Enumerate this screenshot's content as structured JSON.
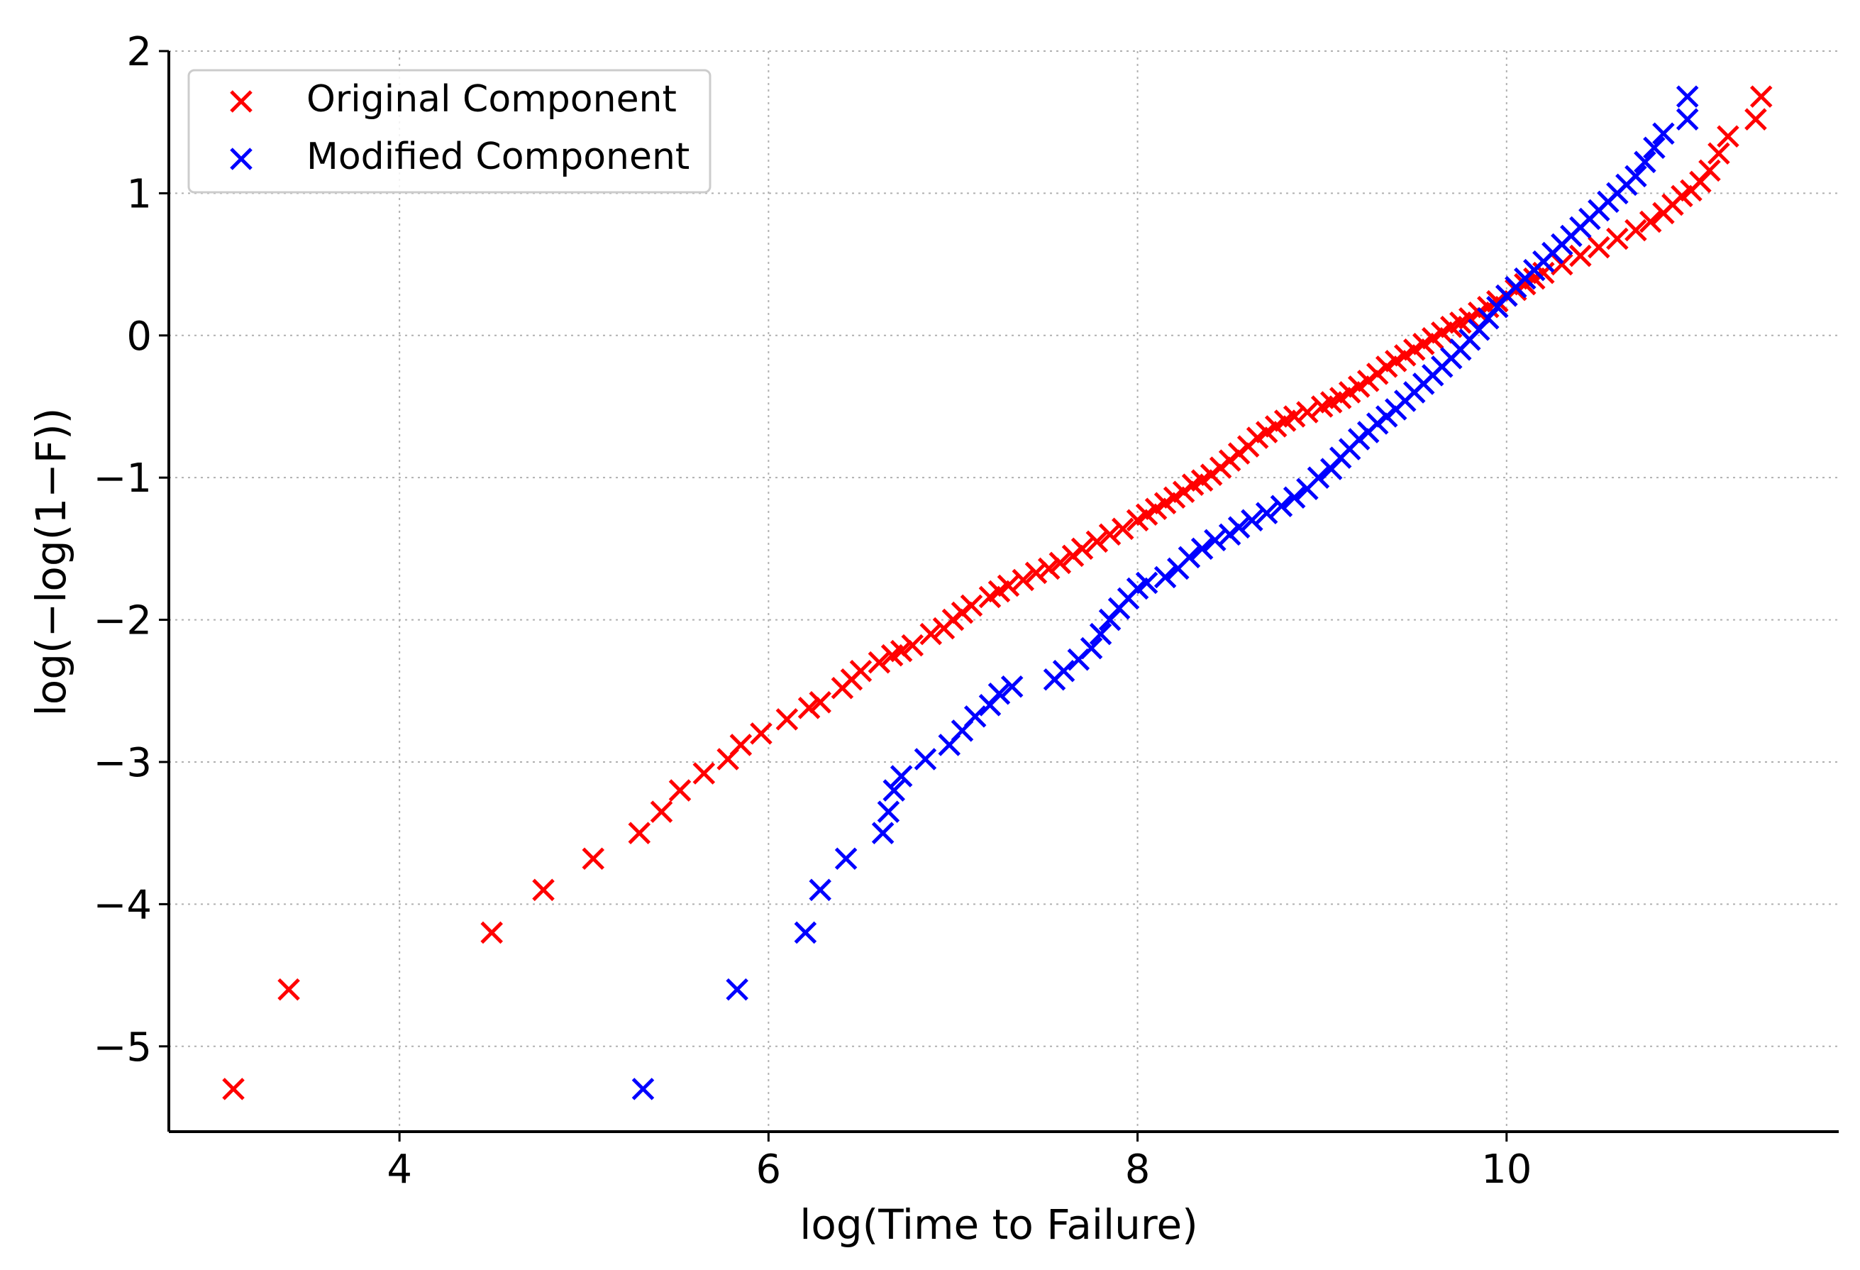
{
  "chart_data": {
    "type": "scatter",
    "xlabel": "log(Time to Failure)",
    "ylabel": "log(−log(1−F))",
    "xlim": [
      2.75,
      11.8
    ],
    "ylim": [
      -5.6,
      2.0
    ],
    "xticks": [
      4,
      6,
      8,
      10
    ],
    "xtick_labels": [
      "4",
      "6",
      "8",
      "10"
    ],
    "yticks": [
      2,
      1,
      0,
      -1,
      -2,
      -3,
      -4,
      -5
    ],
    "ytick_labels": [
      "2",
      "1",
      "0",
      "−1",
      "−2",
      "−3",
      "−4",
      "−5"
    ],
    "grid": true,
    "grid_style": "dotted",
    "marker": "x",
    "legend_placement": "top-left",
    "series": [
      {
        "name": "Original Component",
        "color": "#ff0000",
        "points": [
          [
            3.1,
            -5.3
          ],
          [
            3.4,
            -4.6
          ],
          [
            4.5,
            -4.2
          ],
          [
            4.78,
            -3.9
          ],
          [
            5.05,
            -3.68
          ],
          [
            5.3,
            -3.5
          ],
          [
            5.42,
            -3.35
          ],
          [
            5.52,
            -3.2
          ],
          [
            5.65,
            -3.08
          ],
          [
            5.78,
            -2.98
          ],
          [
            5.85,
            -2.88
          ],
          [
            5.96,
            -2.8
          ],
          [
            6.1,
            -2.7
          ],
          [
            6.22,
            -2.62
          ],
          [
            6.28,
            -2.58
          ],
          [
            6.4,
            -2.48
          ],
          [
            6.45,
            -2.42
          ],
          [
            6.5,
            -2.36
          ],
          [
            6.6,
            -2.3
          ],
          [
            6.67,
            -2.25
          ],
          [
            6.72,
            -2.22
          ],
          [
            6.78,
            -2.18
          ],
          [
            6.88,
            -2.1
          ],
          [
            6.95,
            -2.06
          ],
          [
            7.0,
            -2.0
          ],
          [
            7.05,
            -1.95
          ],
          [
            7.1,
            -1.9
          ],
          [
            7.2,
            -1.84
          ],
          [
            7.25,
            -1.8
          ],
          [
            7.3,
            -1.76
          ],
          [
            7.38,
            -1.72
          ],
          [
            7.45,
            -1.67
          ],
          [
            7.52,
            -1.64
          ],
          [
            7.58,
            -1.6
          ],
          [
            7.65,
            -1.55
          ],
          [
            7.7,
            -1.5
          ],
          [
            7.78,
            -1.45
          ],
          [
            7.85,
            -1.4
          ],
          [
            7.92,
            -1.36
          ],
          [
            8.0,
            -1.3
          ],
          [
            8.05,
            -1.26
          ],
          [
            8.1,
            -1.22
          ],
          [
            8.15,
            -1.18
          ],
          [
            8.2,
            -1.14
          ],
          [
            8.25,
            -1.1
          ],
          [
            8.3,
            -1.05
          ],
          [
            8.35,
            -1.02
          ],
          [
            8.4,
            -0.98
          ],
          [
            8.45,
            -0.93
          ],
          [
            8.5,
            -0.88
          ],
          [
            8.55,
            -0.83
          ],
          [
            8.6,
            -0.78
          ],
          [
            8.65,
            -0.72
          ],
          [
            8.7,
            -0.68
          ],
          [
            8.75,
            -0.64
          ],
          [
            8.8,
            -0.6
          ],
          [
            8.85,
            -0.57
          ],
          [
            8.92,
            -0.54
          ],
          [
            9.0,
            -0.5
          ],
          [
            9.05,
            -0.47
          ],
          [
            9.1,
            -0.44
          ],
          [
            9.15,
            -0.4
          ],
          [
            9.2,
            -0.36
          ],
          [
            9.25,
            -0.32
          ],
          [
            9.3,
            -0.27
          ],
          [
            9.35,
            -0.22
          ],
          [
            9.4,
            -0.18
          ],
          [
            9.45,
            -0.14
          ],
          [
            9.5,
            -0.1
          ],
          [
            9.55,
            -0.06
          ],
          [
            9.6,
            -0.02
          ],
          [
            9.65,
            0.02
          ],
          [
            9.7,
            0.06
          ],
          [
            9.75,
            0.09
          ],
          [
            9.8,
            0.12
          ],
          [
            9.85,
            0.16
          ],
          [
            9.9,
            0.2
          ],
          [
            9.95,
            0.24
          ],
          [
            10.0,
            0.28
          ],
          [
            10.05,
            0.32
          ],
          [
            10.1,
            0.36
          ],
          [
            10.15,
            0.4
          ],
          [
            10.2,
            0.44
          ],
          [
            10.3,
            0.5
          ],
          [
            10.4,
            0.56
          ],
          [
            10.5,
            0.62
          ],
          [
            10.6,
            0.68
          ],
          [
            10.7,
            0.74
          ],
          [
            10.78,
            0.8
          ],
          [
            10.85,
            0.86
          ],
          [
            10.9,
            0.92
          ],
          [
            10.95,
            0.98
          ],
          [
            11.0,
            1.02
          ],
          [
            11.05,
            1.08
          ],
          [
            11.1,
            1.16
          ],
          [
            11.15,
            1.28
          ],
          [
            11.2,
            1.4
          ],
          [
            11.35,
            1.52
          ],
          [
            11.38,
            1.68
          ]
        ]
      },
      {
        "name": "Modified Component",
        "color": "#0000ff",
        "points": [
          [
            5.32,
            -5.3
          ],
          [
            5.83,
            -4.6
          ],
          [
            6.2,
            -4.2
          ],
          [
            6.28,
            -3.9
          ],
          [
            6.42,
            -3.68
          ],
          [
            6.62,
            -3.5
          ],
          [
            6.65,
            -3.35
          ],
          [
            6.68,
            -3.2
          ],
          [
            6.72,
            -3.1
          ],
          [
            6.85,
            -2.98
          ],
          [
            6.98,
            -2.88
          ],
          [
            7.05,
            -2.78
          ],
          [
            7.12,
            -2.68
          ],
          [
            7.2,
            -2.6
          ],
          [
            7.25,
            -2.52
          ],
          [
            7.32,
            -2.47
          ],
          [
            7.55,
            -2.42
          ],
          [
            7.6,
            -2.36
          ],
          [
            7.68,
            -2.28
          ],
          [
            7.75,
            -2.2
          ],
          [
            7.8,
            -2.1
          ],
          [
            7.85,
            -2.0
          ],
          [
            7.9,
            -1.92
          ],
          [
            7.95,
            -1.85
          ],
          [
            8.0,
            -1.78
          ],
          [
            8.05,
            -1.74
          ],
          [
            8.15,
            -1.7
          ],
          [
            8.22,
            -1.64
          ],
          [
            8.28,
            -1.56
          ],
          [
            8.35,
            -1.5
          ],
          [
            8.42,
            -1.44
          ],
          [
            8.5,
            -1.4
          ],
          [
            8.55,
            -1.35
          ],
          [
            8.62,
            -1.3
          ],
          [
            8.7,
            -1.25
          ],
          [
            8.78,
            -1.2
          ],
          [
            8.85,
            -1.14
          ],
          [
            8.92,
            -1.08
          ],
          [
            8.98,
            -1.0
          ],
          [
            9.05,
            -0.94
          ],
          [
            9.1,
            -0.86
          ],
          [
            9.15,
            -0.8
          ],
          [
            9.2,
            -0.73
          ],
          [
            9.25,
            -0.68
          ],
          [
            9.3,
            -0.62
          ],
          [
            9.35,
            -0.57
          ],
          [
            9.4,
            -0.52
          ],
          [
            9.45,
            -0.46
          ],
          [
            9.5,
            -0.4
          ],
          [
            9.55,
            -0.34
          ],
          [
            9.6,
            -0.28
          ],
          [
            9.65,
            -0.22
          ],
          [
            9.7,
            -0.16
          ],
          [
            9.75,
            -0.1
          ],
          [
            9.8,
            -0.03
          ],
          [
            9.85,
            0.04
          ],
          [
            9.9,
            0.12
          ],
          [
            9.95,
            0.2
          ],
          [
            10.0,
            0.28
          ],
          [
            10.05,
            0.34
          ],
          [
            10.1,
            0.4
          ],
          [
            10.15,
            0.46
          ],
          [
            10.2,
            0.52
          ],
          [
            10.25,
            0.58
          ],
          [
            10.3,
            0.64
          ],
          [
            10.35,
            0.7
          ],
          [
            10.4,
            0.76
          ],
          [
            10.45,
            0.82
          ],
          [
            10.5,
            0.88
          ],
          [
            10.55,
            0.94
          ],
          [
            10.6,
            1.0
          ],
          [
            10.65,
            1.06
          ],
          [
            10.7,
            1.12
          ],
          [
            10.75,
            1.22
          ],
          [
            10.8,
            1.32
          ],
          [
            10.85,
            1.42
          ],
          [
            10.98,
            1.52
          ],
          [
            10.98,
            1.68
          ]
        ]
      }
    ]
  }
}
